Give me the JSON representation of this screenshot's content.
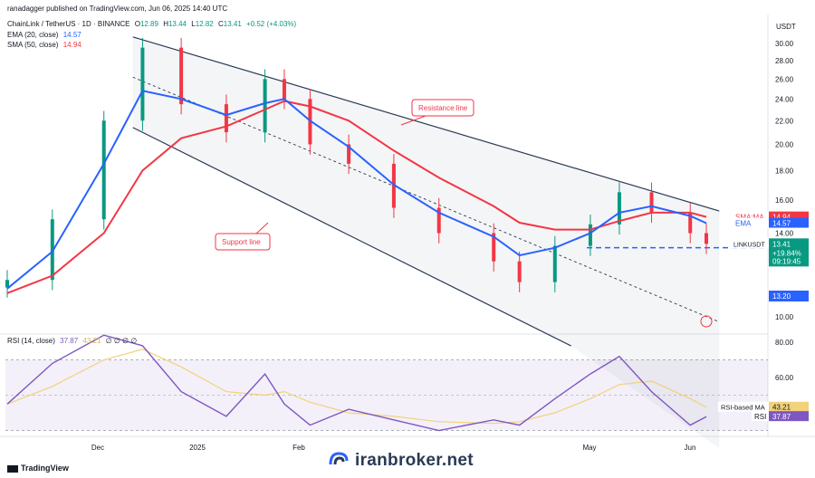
{
  "header": {
    "publisher": "ranadagger published on TradingView.com, Jun 06, 2025 14:40 UTC"
  },
  "legend": {
    "main": {
      "symbol": "ChainLink / TetherUS · 1D · BINANCE",
      "o_label": "O",
      "o": "12.89",
      "h_label": "H",
      "h": "13.44",
      "l_label": "L",
      "l": "12.82",
      "c_label": "C",
      "c": "13.41",
      "chg": "+0.52 (+4.03%)"
    },
    "ema": {
      "label": "EMA (20, close)",
      "value": "14.57"
    },
    "sma": {
      "label": "SMA (50, close)",
      "value": "14.94"
    },
    "rsi": {
      "label": "RSI (14, close)",
      "value": "37.87",
      "value2": "43.21",
      "tail": "∅ ∅ ∅ ∅"
    }
  },
  "annotations": {
    "resistance": "Resistance line",
    "support": "Support line"
  },
  "axis": {
    "currency": "USDT",
    "price_ticks": [
      "30.00",
      "28.00",
      "26.00",
      "24.00",
      "22.00",
      "20.00",
      "18.00",
      "16.00",
      "14.00",
      "10.00"
    ],
    "rsi_ticks": [
      "80.00",
      "60.00"
    ],
    "x_ticks": [
      "Dec",
      "2025",
      "Feb",
      "May",
      "Jun"
    ]
  },
  "price_tags": {
    "sma_name": "SMA:MA",
    "sma_value": "14.94",
    "ema_name": "EMA",
    "ema_value": "14.57",
    "symbol_name": "LINKUSDT",
    "last_price": "13.41",
    "last_change": "+19.84%",
    "countdown": "09:19:45",
    "level": "13.20",
    "rsi_ma_name": "RSI-based MA",
    "rsi_ma_value": "43.21",
    "rsi_name": "RSI",
    "rsi_value": "37.87"
  },
  "footer": {
    "tradingview": "TradingView",
    "watermark": "iranbroker.net"
  },
  "colors": {
    "ema": "#2962ff",
    "sma": "#f23645",
    "up": "#089981",
    "down": "#f23645",
    "rsi": "#7e57c2",
    "rsi_ma": "#f2d27a",
    "channel": "#2a3a55",
    "level": "#2962ff"
  },
  "chart_data": [
    {
      "type": "candlestick",
      "title": "ChainLink / TetherUS · 1D · BINANCE",
      "ylim": [
        9.0,
        31.0
      ],
      "x": [
        "Nov 01",
        "Nov 15",
        "Dec 01",
        "Dec 13",
        "Dec 25",
        "Jan 08",
        "Jan 20",
        "Jan 26",
        "Feb 03",
        "Feb 15",
        "Mar 01",
        "Mar 15",
        "Apr 01",
        "Apr 09",
        "Apr 20",
        "May 01",
        "May 10",
        "May 20",
        "Jun 01",
        "Jun 06"
      ],
      "series": [
        {
          "name": "close",
          "values": [
            11.6,
            14.8,
            22.0,
            29.5,
            23.5,
            21.0,
            26.0,
            24.0,
            20.0,
            18.5,
            15.5,
            14.0,
            12.5,
            11.5,
            13.3,
            14.5,
            16.5,
            15.2,
            14.0,
            13.41
          ]
        },
        {
          "name": "EMA (20, close)",
          "values": [
            11.2,
            13.0,
            18.5,
            24.8,
            24.0,
            22.5,
            23.6,
            24.0,
            22.0,
            19.8,
            17.0,
            15.2,
            13.8,
            12.8,
            13.2,
            14.0,
            15.2,
            15.6,
            15.0,
            14.57
          ]
        },
        {
          "name": "SMA (50, close)",
          "values": [
            11.0,
            11.8,
            14.0,
            18.0,
            20.5,
            21.5,
            23.0,
            23.8,
            23.3,
            22.0,
            19.5,
            17.5,
            15.6,
            14.6,
            14.2,
            14.2,
            14.7,
            15.2,
            15.2,
            14.94
          ]
        }
      ],
      "lines": [
        {
          "name": "Resistance line",
          "from": [
            "Dec 10",
            30.8
          ],
          "to": [
            "Jun 10",
            15.3
          ]
        },
        {
          "name": "Support line",
          "from": [
            "Dec 10",
            21.4
          ],
          "to": [
            "Apr 25",
            8.9
          ]
        },
        {
          "name": "midline",
          "from": [
            "Dec 10",
            26.2
          ],
          "to": [
            "Jun 10",
            9.8
          ]
        },
        {
          "name": "level",
          "value": 13.2
        }
      ]
    },
    {
      "type": "line",
      "title": "RSI (14, close)",
      "ylim": [
        20,
        90
      ],
      "x": [
        "Nov 01",
        "Nov 15",
        "Dec 01",
        "Dec 13",
        "Dec 25",
        "Jan 08",
        "Jan 20",
        "Jan 26",
        "Feb 03",
        "Feb 15",
        "Mar 01",
        "Mar 15",
        "Apr 01",
        "Apr 09",
        "Apr 20",
        "May 01",
        "May 10",
        "May 20",
        "Jun 01",
        "Jun 06"
      ],
      "series": [
        {
          "name": "RSI",
          "values": [
            45,
            68,
            84,
            78,
            52,
            38,
            62,
            45,
            33,
            42,
            36,
            30,
            36,
            33,
            48,
            62,
            72,
            52,
            33,
            37.87
          ]
        },
        {
          "name": "RSI-based MA",
          "values": [
            45,
            55,
            70,
            76,
            66,
            52,
            50,
            52,
            46,
            40,
            38,
            35,
            34,
            35,
            40,
            48,
            56,
            58,
            48,
            43.21
          ]
        }
      ]
    }
  ]
}
